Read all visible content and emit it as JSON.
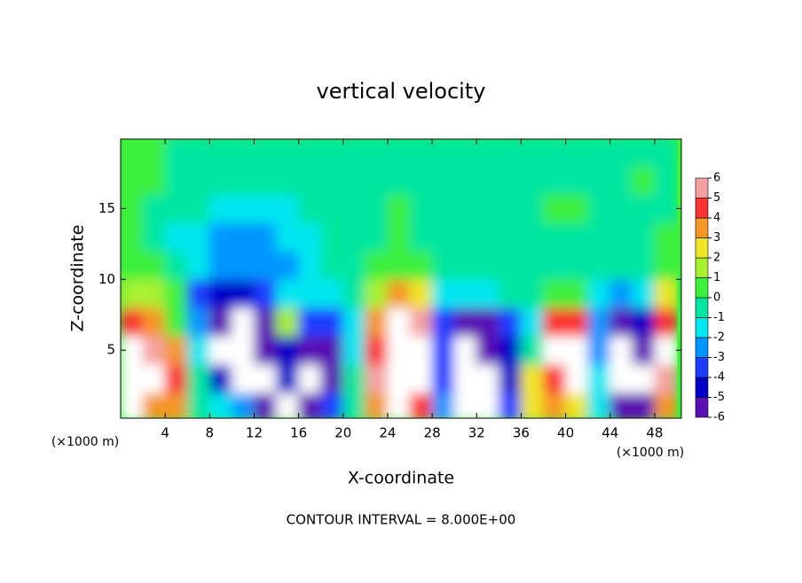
{
  "chart_data": {
    "type": "heatmap",
    "title": "vertical velocity",
    "x_label": "X-coordinate",
    "y_label": "Z-coordinate",
    "x_unit": "(×1000 m)",
    "footer": "CONTOUR INTERVAL = 8.000E+00",
    "xlim": [
      0,
      50.4
    ],
    "ylim": [
      0.2,
      19.9
    ],
    "xticks": [
      4,
      8,
      12,
      16,
      20,
      24,
      28,
      32,
      36,
      40,
      44,
      48
    ],
    "yticks": [
      5,
      10,
      15
    ],
    "x": [
      1,
      3,
      5,
      7,
      9,
      11,
      13,
      15,
      17,
      19,
      21,
      23,
      25,
      27,
      29,
      31,
      33,
      35,
      37,
      39,
      41,
      43,
      45,
      47,
      49
    ],
    "y": [
      1,
      3,
      5,
      7,
      9,
      11,
      13,
      15,
      17,
      19
    ],
    "z": [
      [
        8,
        4,
        4,
        0,
        -1,
        -2,
        -5,
        -7,
        -5,
        -3,
        0,
        4,
        8,
        5,
        -2,
        -7,
        -7,
        -3,
        3,
        4,
        3,
        -1,
        -5,
        -6,
        4
      ],
      [
        8,
        8,
        5,
        0,
        -4,
        -7,
        -8,
        -4,
        -8,
        -5,
        0,
        6,
        8,
        7,
        -3,
        -8,
        -8,
        -4,
        3,
        5,
        7,
        -1,
        -8,
        -7,
        6
      ],
      [
        7,
        6,
        4,
        -1,
        -7,
        -8,
        -6,
        -4,
        -6,
        -5,
        -1,
        5,
        8,
        7,
        -3,
        -7,
        -6,
        -4,
        0,
        7,
        8,
        -2,
        -7,
        -6,
        7
      ],
      [
        5,
        4,
        1,
        -2,
        -5,
        -8,
        -5,
        2,
        -3,
        -3,
        -1,
        4,
        8,
        6,
        -3,
        -5,
        -6,
        -3,
        -1,
        5,
        5,
        -2,
        -5,
        -4,
        5
      ],
      [
        2,
        1.5,
        0.5,
        -3,
        -4,
        -4,
        -3,
        -1,
        -1,
        -1,
        0,
        2,
        4,
        3,
        -1,
        -1,
        -1,
        -0.5,
        0,
        1,
        1,
        -1,
        -2,
        -1,
        3
      ],
      [
        1,
        0.5,
        -0.5,
        -1.5,
        -2,
        -2.5,
        -2.5,
        -2,
        -1,
        -0.5,
        0,
        0.5,
        0.5,
        0.5,
        0,
        0,
        0,
        0,
        0,
        0,
        0,
        0,
        -0.5,
        0,
        1
      ],
      [
        0.5,
        0,
        -1,
        -1.5,
        -2,
        -2,
        -2,
        -1.5,
        -1,
        0,
        0,
        0,
        0.5,
        0,
        0,
        0,
        0,
        0,
        0,
        0,
        0,
        0,
        0,
        0,
        0.5
      ],
      [
        0.5,
        0,
        -0.5,
        -0.5,
        -1,
        -1.5,
        -1.5,
        -1,
        -0.5,
        0,
        0,
        0,
        0.5,
        0,
        0,
        0,
        0,
        0,
        0,
        0.5,
        0.5,
        0,
        0,
        0,
        0
      ],
      [
        0.5,
        0.5,
        0,
        0,
        -0.5,
        -0.5,
        -0.5,
        -0.5,
        0,
        0,
        0,
        0,
        0,
        0,
        0,
        0,
        0,
        0,
        0,
        0,
        0,
        0,
        0,
        0.5,
        0
      ],
      [
        0.5,
        0.5,
        0,
        0,
        0,
        0,
        0,
        0,
        0,
        0,
        0,
        0,
        0,
        0,
        0,
        0,
        0,
        0,
        0,
        0,
        0,
        0,
        0,
        0,
        0
      ]
    ],
    "levels": [
      -6,
      -5,
      -4,
      -3,
      -2,
      -1,
      0,
      1,
      2,
      3,
      4,
      5,
      6
    ],
    "colors": [
      "#5a10b4",
      "#0000c8",
      "#1e3cff",
      "#0096ff",
      "#00e6f0",
      "#00e6a0",
      "#3cf03c",
      "#a8f032",
      "#f0e628",
      "#f59628",
      "#fa3232",
      "#f5a0a0"
    ]
  }
}
